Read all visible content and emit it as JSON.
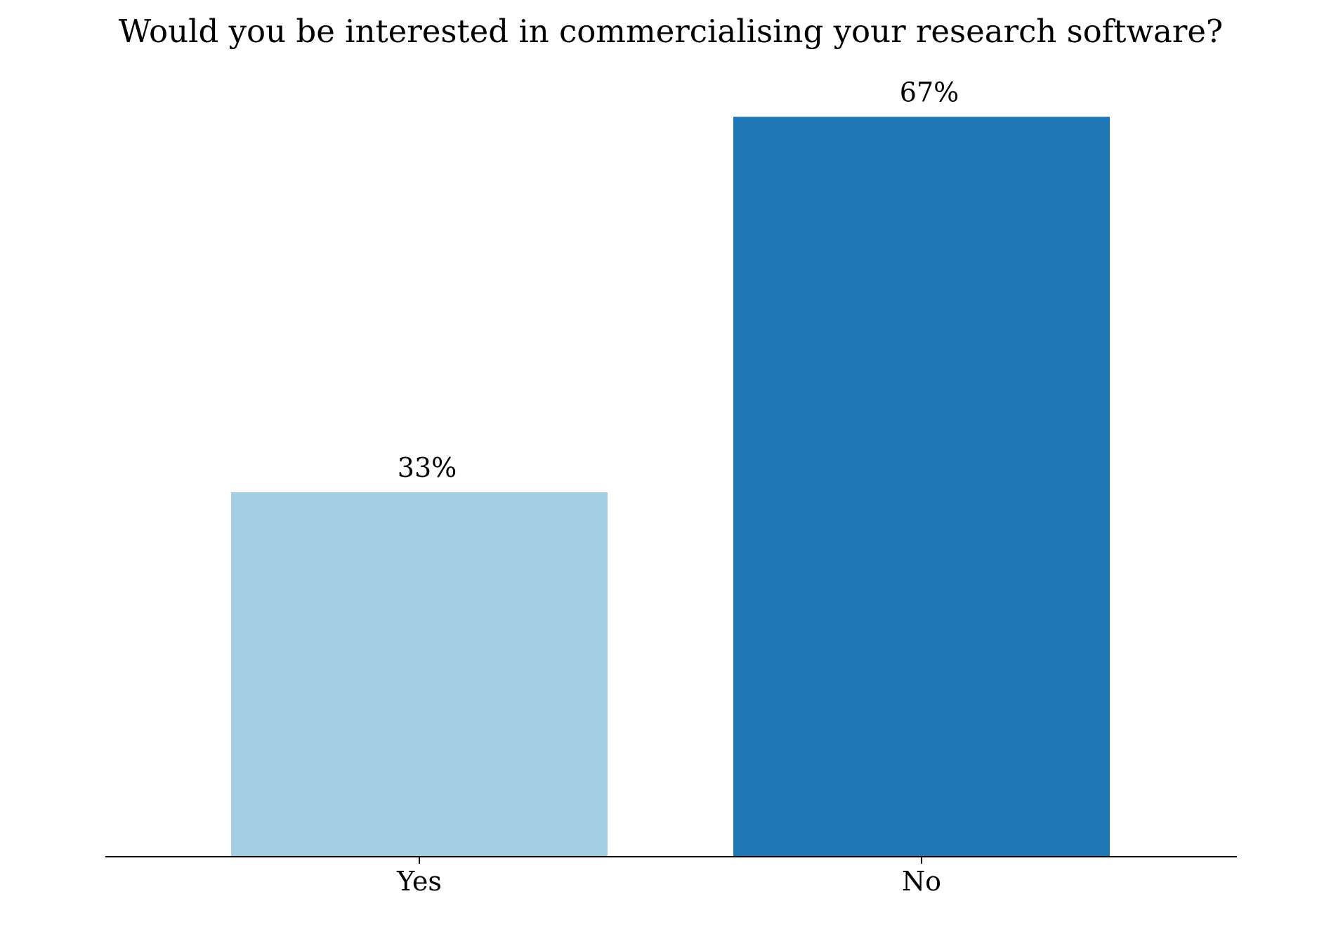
{
  "chart_data": {
    "type": "bar",
    "title": "Would you be interested in commercialising your research software?",
    "categories": [
      "Yes",
      "No"
    ],
    "values": [
      33,
      67
    ],
    "value_labels": [
      "33%",
      "67%"
    ],
    "colors": [
      "#a6cee3",
      "#1f78b4"
    ],
    "xlabel": "",
    "ylabel": "",
    "ylim": [
      0,
      73
    ],
    "grid": false,
    "y_axis_visible": false
  }
}
